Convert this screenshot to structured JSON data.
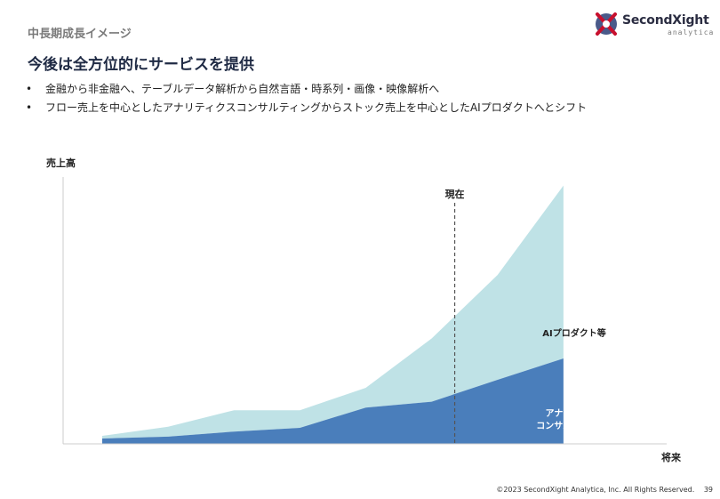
{
  "header": {
    "section_label": "中長期成長イメージ",
    "title": "今後は全方位的にサービスを提供",
    "bullets": [
      "金融から非金融へ、テーブルデータ解析から自然言語・時系列・画像・映像解析へ",
      "フロー売上を中心としたアナリティクスコンサルティングからストック売上を中心としたAIプロダクトへとシフト"
    ],
    "bullet_glyph": "•"
  },
  "logo": {
    "name": "SecondXight",
    "sub": "analytica",
    "colors": [
      "#c8102e",
      "#4a5a8a"
    ]
  },
  "chart_data": {
    "type": "area",
    "stacked": true,
    "ylabel": "売上高",
    "xlabel": "将来",
    "marker": {
      "label": "現在",
      "x": 5.35
    },
    "x": [
      0,
      1,
      2,
      3,
      4,
      5,
      6,
      7,
      8
    ],
    "series": [
      {
        "name": "アナリティクス\nコンサルティング等",
        "values": [
          2.0,
          2.7,
          4.6,
          6.0,
          13.6,
          15.8,
          24.0,
          32.0,
          0
        ],
        "color": "#4a7ebb"
      },
      {
        "name": "AIプロダクト等",
        "values": [
          1.0,
          3.7,
          8.0,
          6.6,
          7.4,
          23.7,
          39.3,
          64.8,
          0
        ],
        "color": "#bfe2e6"
      }
    ],
    "xlim": [
      0,
      8
    ],
    "ylim": [
      0,
      100
    ],
    "grid": false,
    "legend": "inline labels"
  },
  "footer": {
    "copyright": "©2023 SecondXight Analytica, Inc. All Rights Reserved.",
    "page": "39"
  }
}
